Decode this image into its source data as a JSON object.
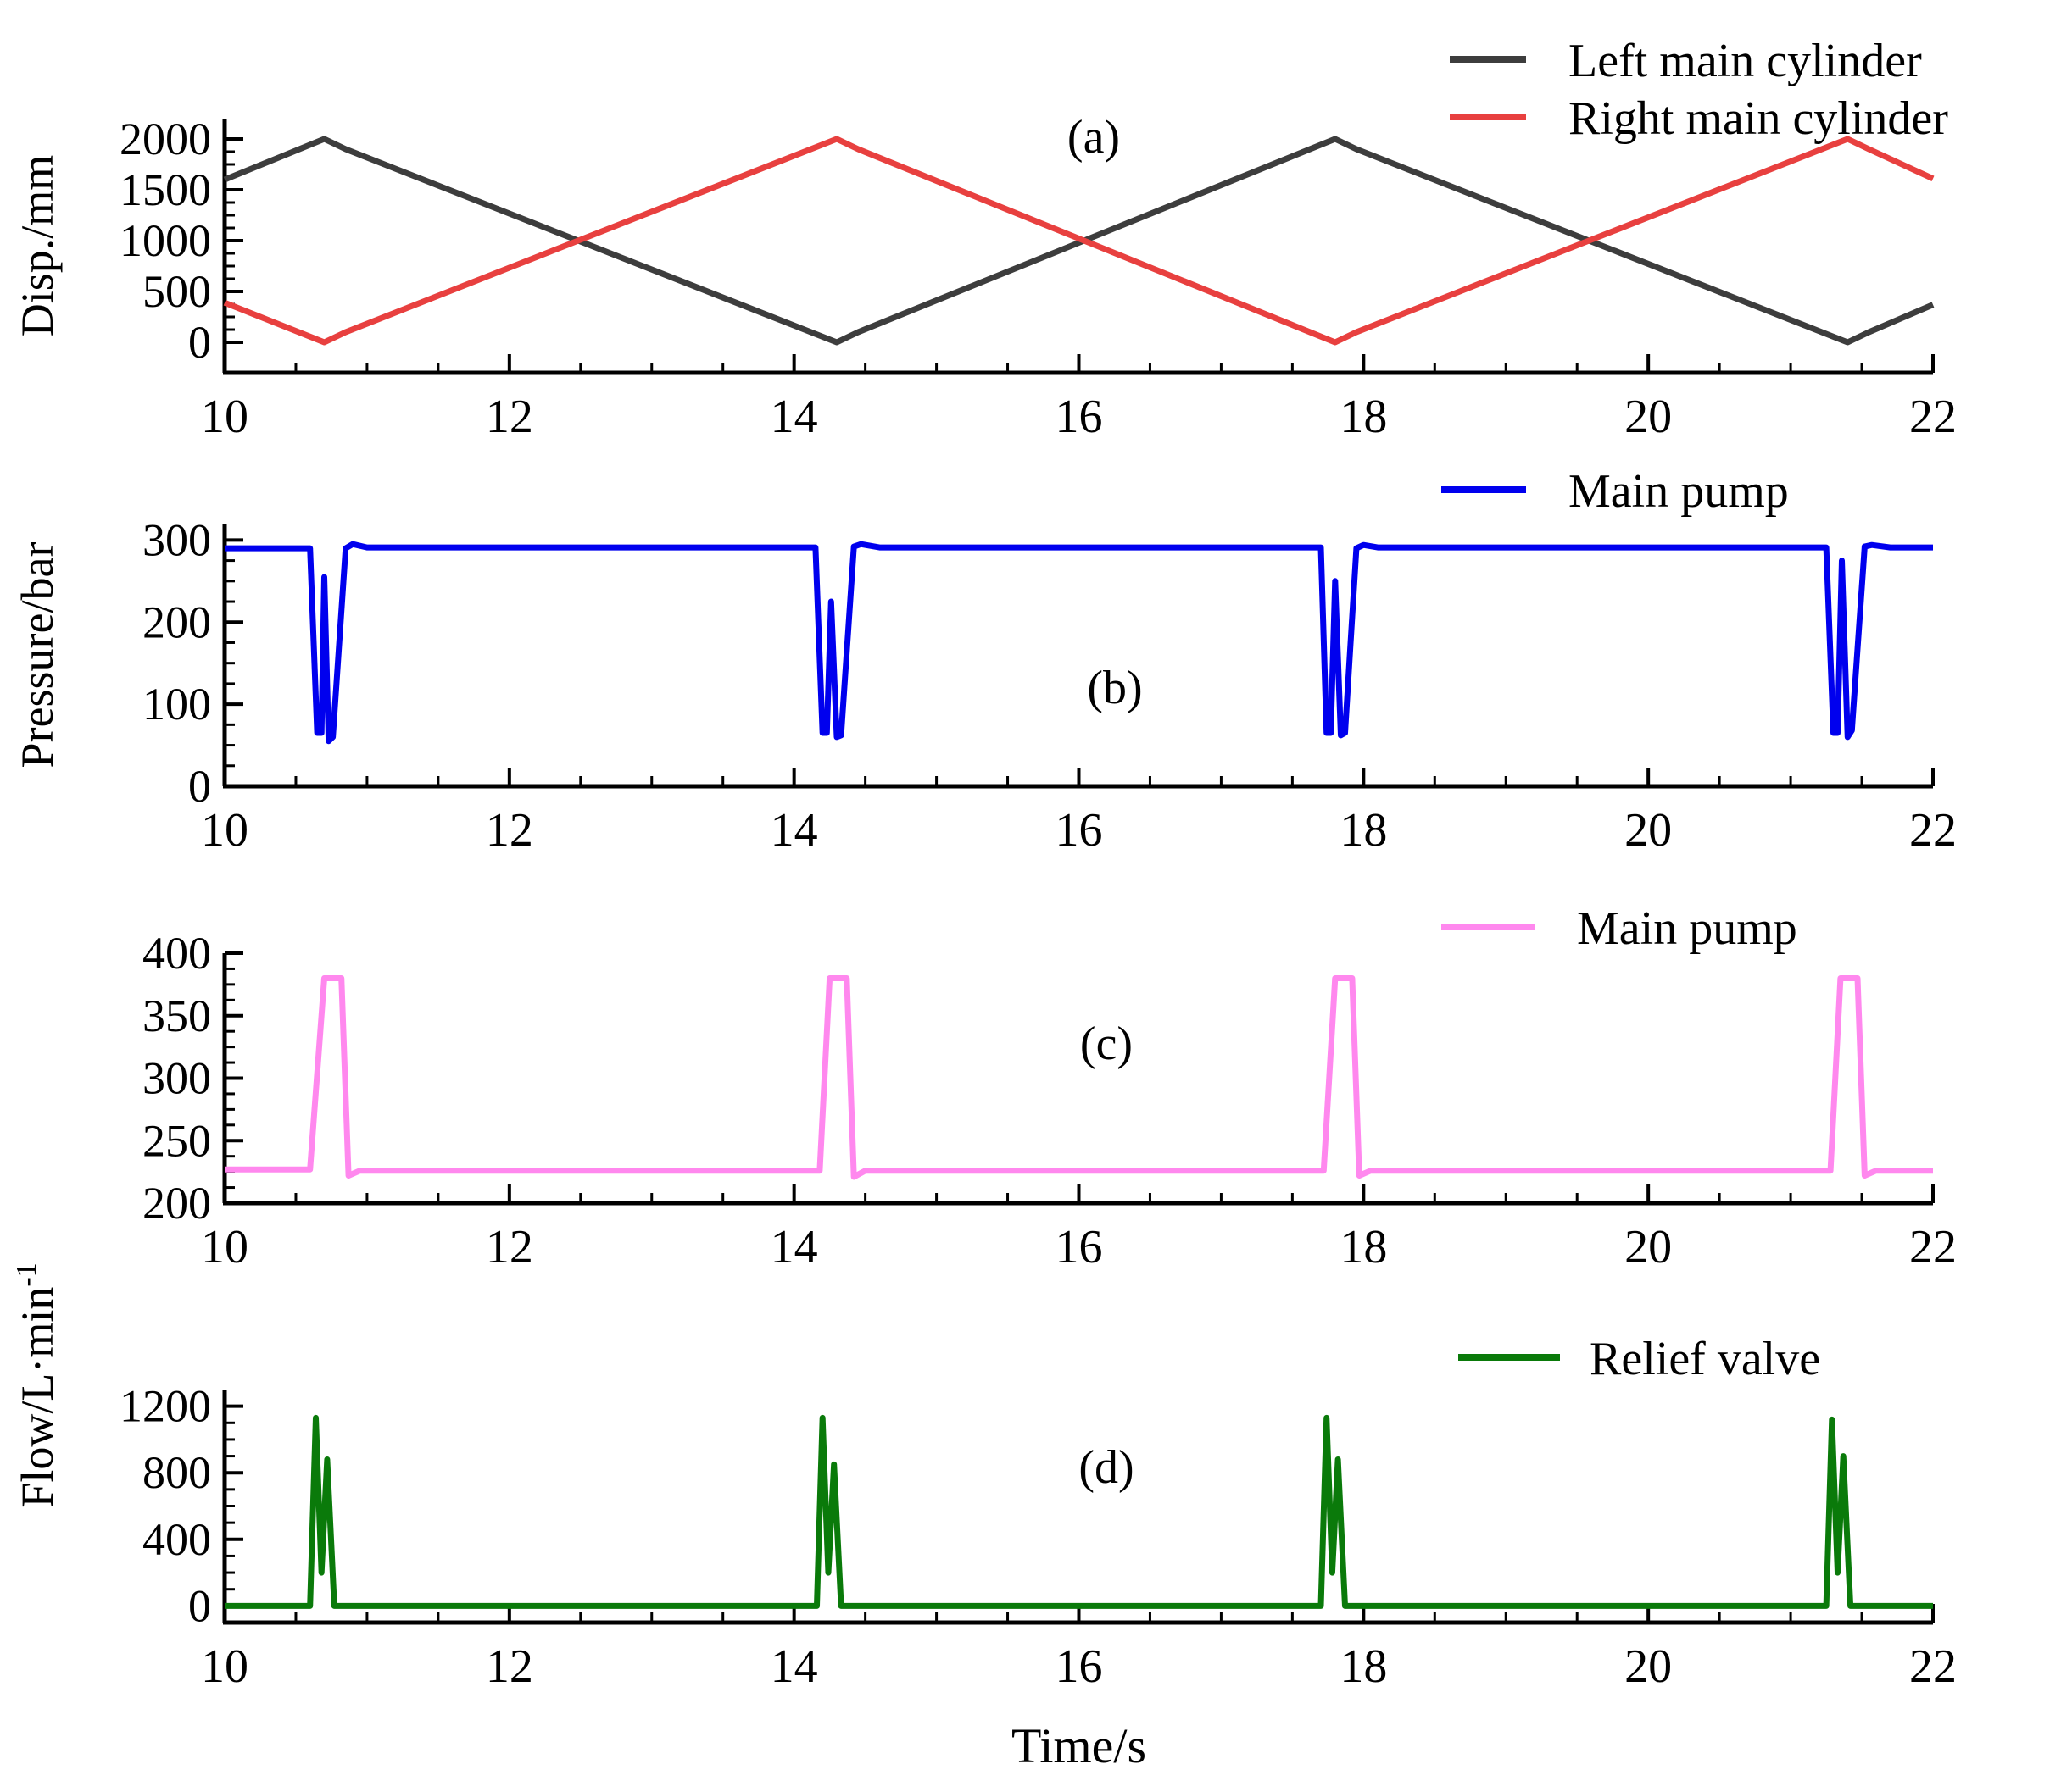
{
  "chart_data": [
    {
      "id": "a",
      "type": "line",
      "panel_label": "(a)",
      "ylabel": "Disp./mm",
      "xlabel": "",
      "xlim": [
        10,
        22
      ],
      "ylim": [
        -300,
        2200
      ],
      "x_ticks": [
        10,
        12,
        14,
        16,
        18,
        20,
        22
      ],
      "y_ticks": [
        0,
        500,
        1000,
        1500,
        2000
      ],
      "legend_placement": "top-right",
      "series": [
        {
          "name": "Left main cylinder",
          "color": "#3d3d3d",
          "points": [
            [
              10,
              1600
            ],
            [
              10.7,
              2000
            ],
            [
              10.85,
              1900
            ],
            [
              14.3,
              0
            ],
            [
              14.45,
              100
            ],
            [
              17.8,
              2000
            ],
            [
              17.95,
              1900
            ],
            [
              21.4,
              0
            ],
            [
              21.55,
              100
            ],
            [
              22,
              370
            ]
          ]
        },
        {
          "name": "Right main cylinder",
          "color": "#e8403f",
          "points": [
            [
              10,
              390
            ],
            [
              10.7,
              0
            ],
            [
              10.85,
              100
            ],
            [
              14.3,
              2000
            ],
            [
              14.45,
              1900
            ],
            [
              17.8,
              0
            ],
            [
              17.95,
              100
            ],
            [
              21.4,
              2000
            ],
            [
              21.55,
              1900
            ],
            [
              22,
              1610
            ]
          ]
        }
      ]
    },
    {
      "id": "b",
      "type": "line",
      "panel_label": "(b)",
      "ylabel": "Pressure/bar",
      "xlabel": "",
      "xlim": [
        10,
        22
      ],
      "ylim": [
        0,
        320
      ],
      "x_ticks": [
        10,
        12,
        14,
        16,
        18,
        20,
        22
      ],
      "y_ticks": [
        0,
        100,
        200,
        300
      ],
      "legend_placement": "top-right",
      "series": [
        {
          "name": "Main pump",
          "color": "#0000ee",
          "points": [
            [
              10,
              290
            ],
            [
              10.6,
              290
            ],
            [
              10.65,
              65
            ],
            [
              10.68,
              65
            ],
            [
              10.7,
              255
            ],
            [
              10.73,
              55
            ],
            [
              10.76,
              60
            ],
            [
              10.85,
              290
            ],
            [
              10.9,
              295
            ],
            [
              11.0,
              291
            ],
            [
              14.15,
              291
            ],
            [
              14.2,
              65
            ],
            [
              14.23,
              65
            ],
            [
              14.26,
              225
            ],
            [
              14.3,
              60
            ],
            [
              14.33,
              62
            ],
            [
              14.42,
              292
            ],
            [
              14.47,
              295
            ],
            [
              14.6,
              291
            ],
            [
              17.7,
              291
            ],
            [
              17.74,
              65
            ],
            [
              17.77,
              65
            ],
            [
              17.8,
              250
            ],
            [
              17.84,
              62
            ],
            [
              17.87,
              65
            ],
            [
              17.95,
              290
            ],
            [
              18.0,
              294
            ],
            [
              18.1,
              291
            ],
            [
              21.25,
              291
            ],
            [
              21.3,
              65
            ],
            [
              21.33,
              65
            ],
            [
              21.36,
              275
            ],
            [
              21.4,
              60
            ],
            [
              21.43,
              68
            ],
            [
              21.52,
              292
            ],
            [
              21.57,
              294
            ],
            [
              21.7,
              291
            ],
            [
              22,
              291
            ]
          ]
        }
      ]
    },
    {
      "id": "c",
      "type": "line",
      "panel_label": "(c)",
      "ylabel": "",
      "xlabel": "",
      "xlim": [
        10,
        22
      ],
      "ylim": [
        200,
        400
      ],
      "x_ticks": [
        10,
        12,
        14,
        16,
        18,
        20,
        22
      ],
      "y_ticks": [
        200,
        250,
        300,
        350,
        400
      ],
      "legend_placement": "top-right",
      "series": [
        {
          "name": "Main pump",
          "color": "#ff88ee",
          "points": [
            [
              10,
              227
            ],
            [
              10.6,
              227
            ],
            [
              10.7,
              380
            ],
            [
              10.82,
              380
            ],
            [
              10.87,
              222
            ],
            [
              10.95,
              226
            ],
            [
              14.18,
              226
            ],
            [
              14.25,
              380
            ],
            [
              14.37,
              380
            ],
            [
              14.42,
              221
            ],
            [
              14.5,
              226
            ],
            [
              17.72,
              226
            ],
            [
              17.8,
              380
            ],
            [
              17.92,
              380
            ],
            [
              17.97,
              222
            ],
            [
              18.05,
              226
            ],
            [
              21.28,
              226
            ],
            [
              21.35,
              380
            ],
            [
              21.47,
              380
            ],
            [
              21.52,
              222
            ],
            [
              21.6,
              226
            ],
            [
              22,
              226
            ]
          ]
        }
      ]
    },
    {
      "id": "d",
      "type": "line",
      "panel_label": "(d)",
      "ylabel": "",
      "xlabel": "Time/s",
      "xlim": [
        10,
        22
      ],
      "ylim": [
        -100,
        1300
      ],
      "x_ticks": [
        10,
        12,
        14,
        16,
        18,
        20,
        22
      ],
      "y_ticks": [
        0,
        400,
        800,
        1200
      ],
      "legend_placement": "top-right",
      "series": [
        {
          "name": "Relief valve",
          "color": "#0a7a0a",
          "points": [
            [
              10,
              0
            ],
            [
              10.6,
              0
            ],
            [
              10.64,
              1130
            ],
            [
              10.68,
              200
            ],
            [
              10.72,
              880
            ],
            [
              10.77,
              0
            ],
            [
              14.16,
              0
            ],
            [
              14.2,
              1130
            ],
            [
              14.24,
              200
            ],
            [
              14.28,
              850
            ],
            [
              14.33,
              0
            ],
            [
              17.7,
              0
            ],
            [
              17.74,
              1130
            ],
            [
              17.78,
              200
            ],
            [
              17.82,
              880
            ],
            [
              17.87,
              0
            ],
            [
              21.25,
              0
            ],
            [
              21.29,
              1120
            ],
            [
              21.33,
              200
            ],
            [
              21.37,
              900
            ],
            [
              21.42,
              0
            ],
            [
              22,
              0
            ]
          ]
        }
      ]
    }
  ],
  "shared_ylabel_lower": {
    "prefix": "Flow/L·min",
    "superscript": "-1"
  }
}
